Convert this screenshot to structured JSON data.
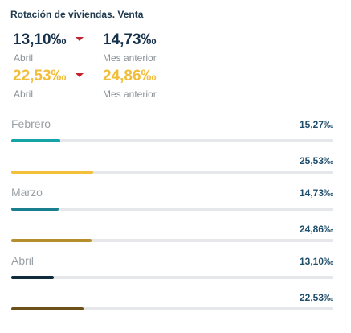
{
  "title": "Rotación de viviendas. Venta",
  "kpis": [
    {
      "value": "13,10‰",
      "label": "Abril",
      "trend": "down",
      "color": "#15304a"
    },
    {
      "value": "14,73‰",
      "label": "Mes anterior",
      "color": "#15304a"
    },
    {
      "value": "22,53‰",
      "label": "Abril",
      "trend": "down",
      "color": "#f2bd39"
    },
    {
      "value": "24,86‰",
      "label": "Mes anterior",
      "color": "#f2bd39"
    }
  ],
  "chart_data": {
    "type": "bar",
    "unit": "‰",
    "scale_max": 100,
    "categories": [
      "Febrero",
      "Marzo",
      "Abril"
    ],
    "series_values": [
      {
        "category": "Febrero",
        "value": 15.27,
        "label": "15,27‰",
        "color": "#16a3a6"
      },
      {
        "category": "Febrero",
        "value": 25.53,
        "label": "25,53‰",
        "color": "#f4c03c"
      },
      {
        "category": "Marzo",
        "value": 14.73,
        "label": "14,73‰",
        "color": "#197f8e"
      },
      {
        "category": "Marzo",
        "value": 24.86,
        "label": "24,86‰",
        "color": "#b78e2c"
      },
      {
        "category": "Abril",
        "value": 13.1,
        "label": "13,10‰",
        "color": "#0f2b3c"
      },
      {
        "category": "Abril",
        "value": 22.53,
        "label": "22,53‰",
        "color": "#6d5117"
      }
    ]
  }
}
